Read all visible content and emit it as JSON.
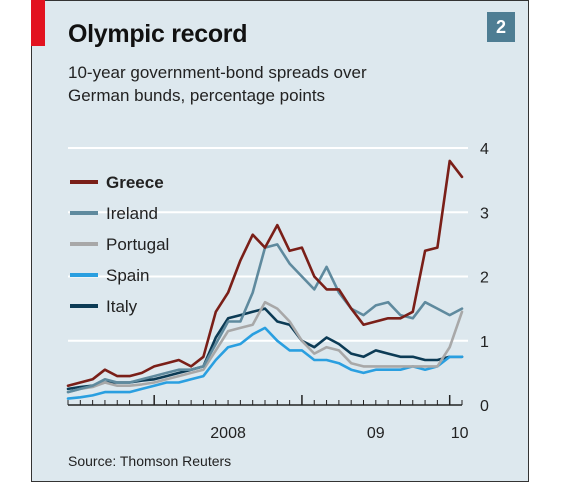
{
  "header": {
    "title": "Olympic record",
    "badge": "2",
    "subtitle_line1": "10-year government-bond spreads over",
    "subtitle_line2": "German bunds, percentage points"
  },
  "footer": {
    "source": "Source: Thomson Reuters"
  },
  "colors": {
    "panel": "#dde8ee",
    "accent_bar": "#e2121f",
    "badge": "#4e7d93",
    "Greece": "#7a1f18",
    "Ireland": "#5f8a9e",
    "Portugal": "#a8a8a8",
    "Spain": "#2a9fe0",
    "Italy": "#0c3b55"
  },
  "chart_data": {
    "type": "line",
    "title": "Olympic record",
    "subtitle": "10-year government-bond spreads over German bunds, percentage points",
    "ylabel": "",
    "xlabel": "",
    "ylim": [
      0,
      4
    ],
    "y_ticks": [
      "0",
      "1",
      "2",
      "3",
      "4"
    ],
    "x_tick_labels": [
      "2008",
      "09",
      "10"
    ],
    "x_range": [
      "2007-06",
      "2010-02"
    ],
    "grid": "horizontal",
    "legend_position": "top-left",
    "x": [
      "2007-06",
      "2007-07",
      "2007-08",
      "2007-09",
      "2007-10",
      "2007-11",
      "2007-12",
      "2008-01",
      "2008-02",
      "2008-03",
      "2008-04",
      "2008-05",
      "2008-06",
      "2008-07",
      "2008-08",
      "2008-09",
      "2008-10",
      "2008-11",
      "2008-12",
      "2009-01",
      "2009-02",
      "2009-03",
      "2009-04",
      "2009-05",
      "2009-06",
      "2009-07",
      "2009-08",
      "2009-09",
      "2009-10",
      "2009-11",
      "2009-12",
      "2010-01",
      "2010-02"
    ],
    "series": [
      {
        "name": "Greece",
        "values": [
          0.3,
          0.35,
          0.4,
          0.55,
          0.45,
          0.45,
          0.5,
          0.6,
          0.65,
          0.7,
          0.6,
          0.75,
          1.45,
          1.75,
          2.25,
          2.65,
          2.45,
          2.8,
          2.4,
          2.45,
          2.0,
          1.8,
          1.8,
          1.5,
          1.25,
          1.3,
          1.35,
          1.35,
          1.45,
          2.4,
          2.45,
          3.8,
          3.55
        ]
      },
      {
        "name": "Ireland",
        "values": [
          0.2,
          0.25,
          0.3,
          0.4,
          0.35,
          0.35,
          0.4,
          0.45,
          0.5,
          0.55,
          0.55,
          0.6,
          0.95,
          1.3,
          1.3,
          1.75,
          2.45,
          2.5,
          2.2,
          2.0,
          1.8,
          2.15,
          1.75,
          1.5,
          1.4,
          1.55,
          1.6,
          1.4,
          1.35,
          1.6,
          1.5,
          1.4,
          1.5
        ]
      },
      {
        "name": "Portugal",
        "values": [
          0.2,
          0.25,
          0.28,
          0.35,
          0.3,
          0.3,
          0.32,
          0.35,
          0.4,
          0.45,
          0.5,
          0.55,
          0.85,
          1.15,
          1.2,
          1.25,
          1.6,
          1.5,
          1.3,
          1.0,
          0.8,
          0.9,
          0.85,
          0.65,
          0.6,
          0.6,
          0.6,
          0.6,
          0.6,
          0.6,
          0.6,
          0.9,
          1.45
        ]
      },
      {
        "name": "Spain",
        "values": [
          0.1,
          0.12,
          0.15,
          0.2,
          0.2,
          0.2,
          0.25,
          0.3,
          0.35,
          0.35,
          0.4,
          0.45,
          0.7,
          0.9,
          0.95,
          1.1,
          1.2,
          1.0,
          0.85,
          0.85,
          0.7,
          0.7,
          0.65,
          0.55,
          0.5,
          0.55,
          0.55,
          0.55,
          0.6,
          0.55,
          0.6,
          0.75,
          0.75
        ]
      },
      {
        "name": "Italy",
        "values": [
          0.25,
          0.28,
          0.3,
          0.35,
          0.35,
          0.35,
          0.38,
          0.4,
          0.45,
          0.5,
          0.55,
          0.6,
          1.05,
          1.35,
          1.4,
          1.45,
          1.5,
          1.3,
          1.25,
          1.0,
          0.9,
          1.05,
          0.95,
          0.8,
          0.75,
          0.85,
          0.8,
          0.75,
          0.75,
          0.7,
          0.7,
          0.75,
          0.75
        ]
      }
    ]
  }
}
